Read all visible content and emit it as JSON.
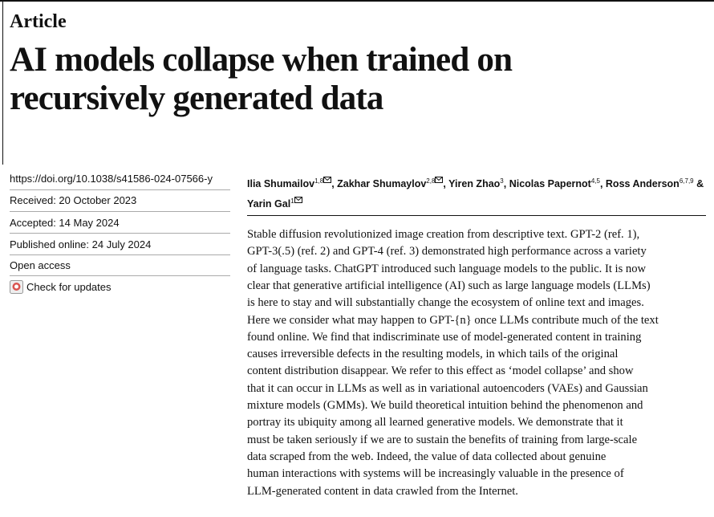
{
  "header": {
    "label": "Article",
    "title_lines": [
      "AI models collapse when trained on",
      "recursively generated data"
    ]
  },
  "meta": {
    "doi": "https://doi.org/10.1038/s41586-024-07566-y",
    "received": "Received: 20 October 2023",
    "accepted": "Accepted: 14 May 2024",
    "published": "Published online: 24 July 2024",
    "access": "Open access",
    "updates": "Check for updates"
  },
  "authors": {
    "separator": ", ",
    "last_separator": "& ",
    "list": [
      {
        "name": "Ilia Shumailov",
        "affiliations": "1,8"
      },
      {
        "name": "Zakhar Shumaylov",
        "affiliations": "2,8"
      },
      {
        "name": "Yiren Zhao",
        "affiliations": "3"
      },
      {
        "name": "Nicolas Papernot",
        "affiliations": "4,5"
      },
      {
        "name": "Ross Anderson",
        "affiliations": "6,7,9"
      },
      {
        "name": "Yarin Gal",
        "affiliations": "1"
      }
    ]
  },
  "abstract": {
    "lines": [
      "Stable diffusion revolutionized image creation from descriptive text. GPT-2 (ref. 1),",
      "GPT-3(.5) (ref. 2) and GPT-4 (ref. 3) demonstrated high performance across a variety",
      "of language tasks. ChatGPT introduced such language models to the public. It is now",
      "clear that generative artificial intelligence (AI) such as large language models (LLMs)",
      "is here to stay and will substantially change the ecosystem of online text and images.",
      "Here we consider what may happen to GPT-{n} once LLMs contribute much of the text",
      "found online. We find that indiscriminate use of model-generated content in training",
      "causes irreversible defects in the resulting models, in which tails of the original",
      "content distribution disappear. We refer to this effect as ‘model collapse’ and show",
      "that it can occur in LLMs as well as in variational autoencoders (VAEs) and Gaussian",
      "mixture models (GMMs). We build theoretical intuition behind the phenomenon and",
      "portray its ubiquity among all learned generative models. We demonstrate that it",
      "must be taken seriously if we are to sustain the benefits of training from large-scale",
      "data scraped from the web. Indeed, the value of data collected about genuine",
      "human interactions with systems will be increasingly valuable in the presence of",
      "LLM-generated content in data crawled from the Internet."
    ]
  }
}
